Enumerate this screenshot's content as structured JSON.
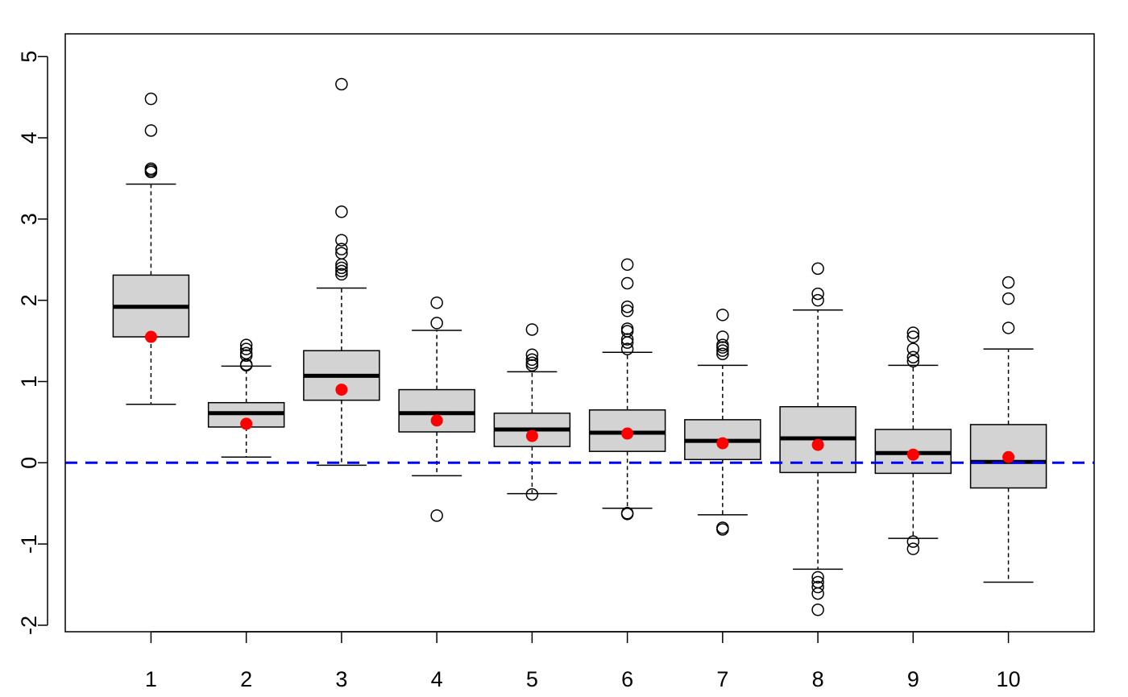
{
  "chart_data": {
    "type": "boxplot",
    "categories": [
      "1",
      "2",
      "3",
      "4",
      "5",
      "6",
      "7",
      "8",
      "9",
      "10"
    ],
    "ylim": [
      -2.08,
      5.28
    ],
    "xlim": [
      0.1,
      10.9
    ],
    "y_ticks": [
      -2,
      -1,
      0,
      1,
      2,
      3,
      4,
      5
    ],
    "y_tick_labels": [
      "-2",
      "-1",
      "0",
      "1",
      "2",
      "3",
      "4",
      "5"
    ],
    "xlabel": "",
    "ylabel": "",
    "title": "",
    "reference_line": {
      "y": 0,
      "color": "#0000ff",
      "style": "dashed"
    },
    "box_fill": "#d3d3d3",
    "mean_color": "#ff0000",
    "boxes": [
      {
        "category": "1",
        "whisker_low": 0.72,
        "q1": 1.55,
        "median": 1.92,
        "q3": 2.31,
        "whisker_high": 3.43,
        "mean": 1.55,
        "outliers": [
          3.58,
          3.6,
          3.62,
          4.09,
          4.48
        ]
      },
      {
        "category": "2",
        "whisker_low": 0.07,
        "q1": 0.44,
        "median": 0.61,
        "q3": 0.74,
        "whisker_high": 1.19,
        "mean": 0.48,
        "outliers": [
          1.2,
          1.21,
          1.32,
          1.35,
          1.4,
          1.45
        ]
      },
      {
        "category": "3",
        "whisker_low": -0.03,
        "q1": 0.77,
        "median": 1.07,
        "q3": 1.38,
        "whisker_high": 2.15,
        "mean": 0.9,
        "outliers": [
          2.32,
          2.36,
          2.4,
          2.44,
          2.58,
          2.63,
          2.74,
          3.09,
          4.66
        ]
      },
      {
        "category": "4",
        "whisker_low": -0.16,
        "q1": 0.38,
        "median": 0.61,
        "q3": 0.9,
        "whisker_high": 1.63,
        "mean": 0.52,
        "outliers": [
          -0.65,
          1.72,
          1.97
        ]
      },
      {
        "category": "5",
        "whisker_low": -0.38,
        "q1": 0.2,
        "median": 0.41,
        "q3": 0.61,
        "whisker_high": 1.12,
        "mean": 0.33,
        "outliers": [
          -0.39,
          1.2,
          1.23,
          1.27,
          1.33,
          1.64
        ]
      },
      {
        "category": "6",
        "whisker_low": -0.56,
        "q1": 0.14,
        "median": 0.37,
        "q3": 0.65,
        "whisker_high": 1.36,
        "mean": 0.36,
        "outliers": [
          -0.63,
          -0.62,
          1.4,
          1.48,
          1.52,
          1.62,
          1.65,
          1.87,
          1.92,
          2.21,
          2.44
        ]
      },
      {
        "category": "7",
        "whisker_low": -0.64,
        "q1": 0.04,
        "median": 0.27,
        "q3": 0.53,
        "whisker_high": 1.2,
        "mean": 0.24,
        "outliers": [
          -0.82,
          -0.8,
          1.34,
          1.38,
          1.42,
          1.45,
          1.55,
          1.82
        ]
      },
      {
        "category": "8",
        "whisker_low": -1.31,
        "q1": -0.12,
        "median": 0.3,
        "q3": 0.69,
        "whisker_high": 1.88,
        "mean": 0.22,
        "outliers": [
          -1.81,
          -1.61,
          -1.53,
          -1.47,
          -1.41,
          2.0,
          2.08,
          2.39
        ]
      },
      {
        "category": "9",
        "whisker_low": -0.93,
        "q1": -0.13,
        "median": 0.12,
        "q3": 0.41,
        "whisker_high": 1.2,
        "mean": 0.1,
        "outliers": [
          -1.06,
          -0.97,
          1.25,
          1.3,
          1.4,
          1.55,
          1.6
        ]
      },
      {
        "category": "10",
        "whisker_low": -1.47,
        "q1": -0.31,
        "median": 0.01,
        "q3": 0.47,
        "whisker_high": 1.4,
        "mean": 0.07,
        "outliers": [
          1.66,
          2.02,
          2.22
        ]
      }
    ]
  }
}
